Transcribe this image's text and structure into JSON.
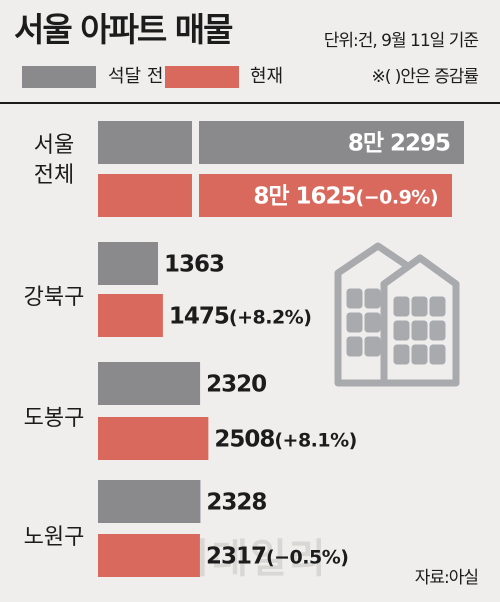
{
  "title": "서울 아파트 매물",
  "unit_note": "단위:건, 9월 11일 기준",
  "change_note": "※( )안은 증감률",
  "source": "자료:아실",
  "watermark": "이데일리",
  "colors": {
    "before": "#8a8a8d",
    "now": "#d9695c",
    "background": "#efeeed",
    "text": "#1c1c1c",
    "building": "#a9aaad"
  },
  "icons": [
    "apartment-building-icon"
  ],
  "chart_data": {
    "type": "bar",
    "orientation": "horizontal",
    "axis_break": true,
    "legend_position": "top-left",
    "grid": false,
    "categories": [
      "서울 전체",
      "강북구",
      "도봉구",
      "노원구"
    ],
    "category_labels": [
      [
        "서울",
        "전체"
      ],
      [
        "강북구"
      ],
      [
        "도봉구"
      ],
      [
        "노원구"
      ]
    ],
    "series": [
      {
        "name": "석달 전",
        "values": [
          82295,
          1363,
          2320,
          2328
        ],
        "value_labels": [
          "8만 2295",
          "1363",
          "2320",
          "2328"
        ],
        "change_labels": [
          "",
          "",
          "",
          ""
        ]
      },
      {
        "name": "현재",
        "values": [
          81625,
          1475,
          2508,
          2317
        ],
        "value_labels": [
          "8만 1625",
          "1475",
          "2508",
          "2317"
        ],
        "change_labels": [
          "(−0.9%)",
          "(+8.2%)",
          "(+8.1%)",
          "(−0.5%)"
        ]
      }
    ]
  }
}
